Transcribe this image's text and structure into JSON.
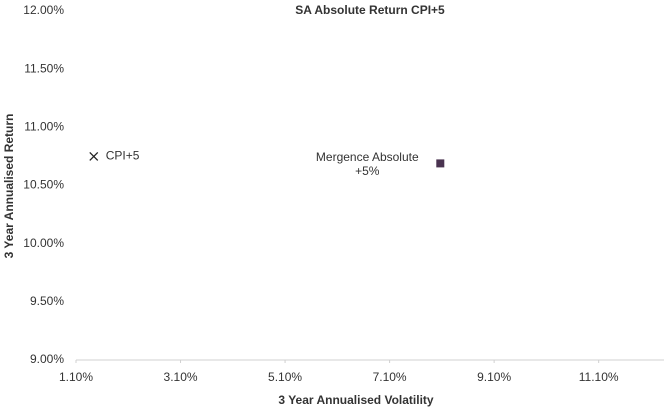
{
  "chart_data": {
    "type": "scatter",
    "title": "SA Absolute Return CPI+5",
    "x_label": "3 Year Annualised Volatility",
    "y_label": "3 Year Annualised Return",
    "xlim": [
      1.1,
      12.35
    ],
    "ylim": [
      9.0,
      12.0
    ],
    "xticks": [
      {
        "value": 1.1,
        "label": "1.10%"
      },
      {
        "value": 3.1,
        "label": "3.10%"
      },
      {
        "value": 5.1,
        "label": "5.10%"
      },
      {
        "value": 7.1,
        "label": "7.10%"
      },
      {
        "value": 9.1,
        "label": "9.10%"
      },
      {
        "value": 11.1,
        "label": "11.10%"
      }
    ],
    "yticks": [
      {
        "value": 9.0,
        "label": "9.00%"
      },
      {
        "value": 9.5,
        "label": "9.50%"
      },
      {
        "value": 10.0,
        "label": "10.00%"
      },
      {
        "value": 10.5,
        "label": "10.50%"
      },
      {
        "value": 11.0,
        "label": "11.00%"
      },
      {
        "value": 11.5,
        "label": "11.50%"
      },
      {
        "value": 12.0,
        "label": "12.00%"
      }
    ],
    "grid": false,
    "series": [
      {
        "name": "CPI+5",
        "color": "#222222",
        "marker": "x",
        "x": [
          1.44
        ],
        "values": [
          10.75
        ]
      },
      {
        "name": "Mergence Absolute +5%",
        "color": "#4a3350",
        "marker": "square",
        "x": [
          8.07
        ],
        "values": [
          10.69
        ]
      }
    ]
  }
}
